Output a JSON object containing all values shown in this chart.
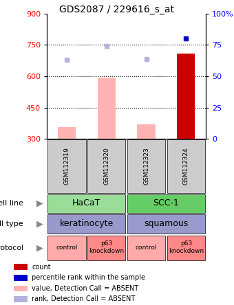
{
  "title": "GDS2087 / 229616_s_at",
  "samples": [
    "GSM112319",
    "GSM112320",
    "GSM112323",
    "GSM112324"
  ],
  "bar_values": [
    355,
    595,
    370,
    710
  ],
  "bar_absent": [
    true,
    true,
    true,
    false
  ],
  "rank_values": [
    63,
    74,
    64,
    80
  ],
  "rank_absent": [
    true,
    true,
    true,
    false
  ],
  "ylim_left": [
    300,
    900
  ],
  "ylim_right": [
    0,
    100
  ],
  "yticks_left": [
    300,
    450,
    600,
    750,
    900
  ],
  "yticks_right": [
    0,
    25,
    50,
    75,
    100
  ],
  "ytick_labels_right": [
    "0",
    "25",
    "50",
    "75",
    "100%"
  ],
  "bar_color_absent": "#ffb3b3",
  "bar_color_present": "#cc0000",
  "rank_color_absent": "#b3b3dd",
  "rank_color_present": "#0000cc",
  "cell_line_colors": [
    "#99dd99",
    "#66cc66"
  ],
  "cell_type_color": "#9999cc",
  "protocol_colors": [
    "#ffaaaa",
    "#ff8888",
    "#ffaaaa",
    "#ff8888"
  ],
  "protocol_labels": [
    "control",
    "p63\nknockdown",
    "control",
    "p63\nknockdown"
  ],
  "legend_items": [
    {
      "color": "#cc0000",
      "label": "count"
    },
    {
      "color": "#0000cc",
      "label": "percentile rank within the sample"
    },
    {
      "color": "#ffb3b3",
      "label": "value, Detection Call = ABSENT"
    },
    {
      "color": "#b3b3dd",
      "label": "rank, Detection Call = ABSENT"
    }
  ]
}
